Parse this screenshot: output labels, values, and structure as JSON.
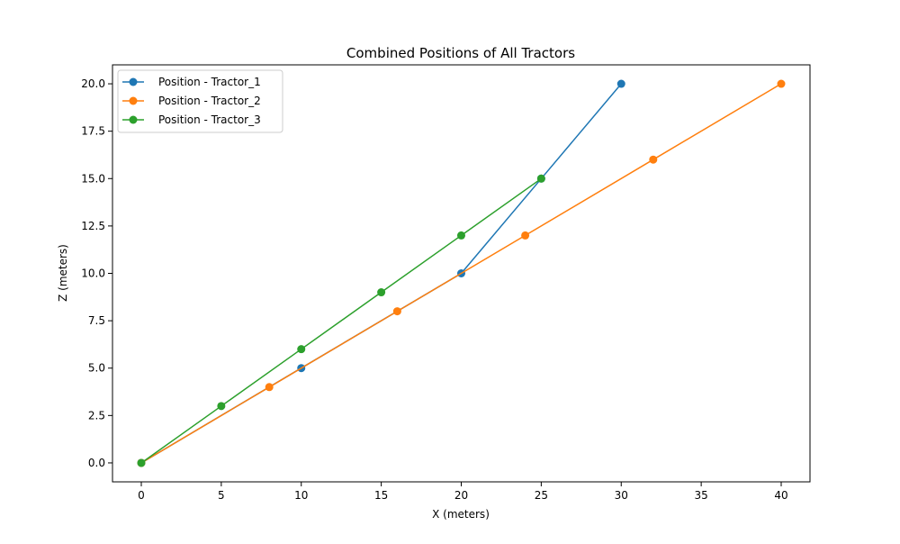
{
  "chart_data": {
    "type": "line",
    "title": "Combined Positions of All Tractors",
    "xlabel": "X (meters)",
    "ylabel": "Z (meters)",
    "xlim": [
      -1.8,
      41.8
    ],
    "ylim": [
      -1.0,
      21.0
    ],
    "xticks": [
      0,
      5,
      10,
      15,
      20,
      25,
      30,
      35,
      40
    ],
    "yticks": [
      0.0,
      2.5,
      5.0,
      7.5,
      10.0,
      12.5,
      15.0,
      17.5,
      20.0
    ],
    "xtick_labels": [
      "0",
      "5",
      "10",
      "15",
      "20",
      "25",
      "30",
      "35",
      "40"
    ],
    "ytick_labels": [
      "0.0",
      "2.5",
      "5.0",
      "7.5",
      "10.0",
      "12.5",
      "15.0",
      "17.5",
      "20.0"
    ],
    "grid": false,
    "legend_position": "top-left",
    "series": [
      {
        "name": "Position - Tractor_1",
        "color": "#1f77b4",
        "x": [
          0,
          10,
          20,
          25,
          30
        ],
        "y": [
          0,
          5,
          10,
          15,
          20
        ]
      },
      {
        "name": "Position - Tractor_2",
        "color": "#ff7f0e",
        "x": [
          0,
          8,
          16,
          24,
          32,
          40
        ],
        "y": [
          0,
          4,
          8,
          12,
          16,
          20
        ]
      },
      {
        "name": "Position - Tractor_3",
        "color": "#2ca02c",
        "x": [
          0,
          5,
          10,
          15,
          20,
          25
        ],
        "y": [
          0,
          3,
          6,
          9,
          12,
          15
        ]
      }
    ]
  }
}
